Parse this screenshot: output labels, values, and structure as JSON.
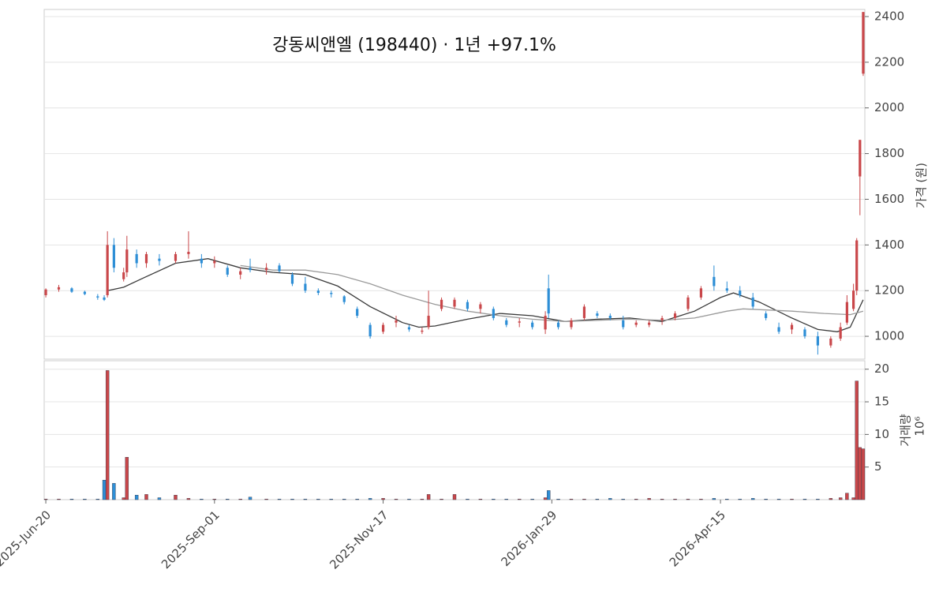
{
  "chart_data": [
    {
      "type": "candlestick",
      "title": "강동씨앤엘 (198440)  ·  1년 +97.1%",
      "ylabel": "가격 (원)",
      "up_color": "#c9474a",
      "down_color": "#2d8ed6",
      "x": [
        0,
        4,
        8,
        12,
        16,
        18,
        19,
        21,
        24,
        25,
        28,
        31,
        35,
        40,
        44,
        48,
        52,
        56,
        60,
        63,
        68,
        72,
        76,
        80,
        84,
        88,
        92,
        96,
        100,
        104,
        108,
        112,
        116,
        118,
        122,
        126,
        130,
        134,
        138,
        142,
        146,
        150,
        154,
        155,
        158,
        162,
        166,
        170,
        174,
        178,
        182,
        186,
        190,
        194,
        198,
        202,
        206,
        210,
        214,
        218,
        222,
        226,
        230,
        234,
        238,
        242,
        245,
        247,
        249,
        250,
        251,
        252
      ],
      "open": [
        1180,
        1205,
        1210,
        1195,
        1175,
        1170,
        1180,
        1400,
        1250,
        1280,
        1360,
        1320,
        1340,
        1330,
        1360,
        1340,
        1320,
        1300,
        1270,
        1300,
        1290,
        1310,
        1270,
        1230,
        1200,
        1190,
        1175,
        1120,
        1050,
        1020,
        1060,
        1040,
        1020,
        1040,
        1120,
        1130,
        1150,
        1120,
        1120,
        1070,
        1060,
        1060,
        1030,
        1210,
        1060,
        1040,
        1080,
        1100,
        1090,
        1070,
        1050,
        1050,
        1070,
        1080,
        1120,
        1170,
        1260,
        1210,
        1200,
        1170,
        1100,
        1040,
        1030,
        1030,
        1000,
        960,
        990,
        1060,
        1120,
        1200,
        1700,
        2150
      ],
      "high": [
        1210,
        1225,
        1215,
        1200,
        1185,
        1180,
        1460,
        1430,
        1300,
        1440,
        1380,
        1370,
        1360,
        1370,
        1460,
        1360,
        1350,
        1310,
        1300,
        1340,
        1320,
        1320,
        1280,
        1260,
        1210,
        1200,
        1180,
        1130,
        1060,
        1060,
        1090,
        1050,
        1040,
        1200,
        1170,
        1170,
        1160,
        1150,
        1130,
        1080,
        1080,
        1070,
        1110,
        1270,
        1070,
        1080,
        1140,
        1110,
        1100,
        1090,
        1070,
        1070,
        1090,
        1110,
        1180,
        1220,
        1310,
        1240,
        1220,
        1190,
        1110,
        1060,
        1060,
        1040,
        1020,
        1000,
        1060,
        1180,
        1230,
        1430,
        1860,
        2420
      ],
      "low": [
        1170,
        1195,
        1190,
        1180,
        1160,
        1155,
        1170,
        1280,
        1240,
        1260,
        1300,
        1300,
        1310,
        1320,
        1340,
        1300,
        1300,
        1260,
        1250,
        1280,
        1270,
        1280,
        1220,
        1190,
        1180,
        1170,
        1140,
        1080,
        990,
        1010,
        1040,
        1020,
        1010,
        1030,
        1110,
        1120,
        1110,
        1100,
        1070,
        1040,
        1040,
        1030,
        1010,
        1080,
        1030,
        1030,
        1070,
        1080,
        1070,
        1030,
        1040,
        1040,
        1050,
        1070,
        1110,
        1160,
        1200,
        1190,
        1170,
        1120,
        1070,
        1010,
        1010,
        990,
        920,
        950,
        980,
        1050,
        1110,
        1180,
        1530,
        2140
      ],
      "close": [
        1205,
        1215,
        1195,
        1185,
        1170,
        1160,
        1400,
        1300,
        1280,
        1380,
        1320,
        1360,
        1330,
        1360,
        1370,
        1320,
        1330,
        1270,
        1285,
        1290,
        1300,
        1285,
        1230,
        1200,
        1190,
        1185,
        1150,
        1090,
        1000,
        1050,
        1070,
        1030,
        1025,
        1090,
        1160,
        1160,
        1120,
        1140,
        1080,
        1050,
        1065,
        1040,
        1090,
        1100,
        1040,
        1070,
        1130,
        1090,
        1080,
        1040,
        1060,
        1060,
        1080,
        1100,
        1170,
        1210,
        1220,
        1200,
        1180,
        1130,
        1080,
        1020,
        1050,
        1000,
        960,
        990,
        1040,
        1150,
        1200,
        1420,
        1860,
        2420
      ],
      "lines": [
        {
          "color": "#3a3a3a",
          "x": [
            19,
            24,
            30,
            40,
            50,
            60,
            70,
            80,
            90,
            100,
            110,
            115,
            120,
            130,
            140,
            150,
            160,
            170,
            180,
            190,
            200,
            208,
            212,
            220,
            230,
            238,
            244,
            248,
            252
          ],
          "values": [
            1200,
            1215,
            1255,
            1320,
            1340,
            1300,
            1280,
            1270,
            1220,
            1130,
            1060,
            1040,
            1045,
            1075,
            1100,
            1090,
            1065,
            1075,
            1080,
            1065,
            1110,
            1170,
            1190,
            1150,
            1080,
            1030,
            1020,
            1040,
            1160
          ]
        },
        {
          "color": "#9a9a9a",
          "x": [
            60,
            70,
            80,
            90,
            100,
            110,
            120,
            130,
            140,
            150,
            160,
            170,
            180,
            190,
            200,
            210,
            215,
            230,
            240,
            248,
            252
          ],
          "values": [
            1310,
            1290,
            1290,
            1270,
            1230,
            1180,
            1140,
            1110,
            1090,
            1075,
            1065,
            1070,
            1075,
            1070,
            1080,
            1110,
            1120,
            1110,
            1100,
            1095,
            1110
          ]
        }
      ],
      "xlim": [
        -0.5,
        252.5
      ],
      "ylim": [
        900,
        2431
      ],
      "yticks": [
        1000,
        1200,
        1400,
        1600,
        1800,
        2000,
        2200,
        2400
      ],
      "grid": true
    },
    {
      "type": "bar",
      "ylabel": "거래량",
      "scale_label": "10⁶",
      "x": [
        0,
        4,
        8,
        12,
        16,
        18,
        19,
        21,
        24,
        25,
        28,
        31,
        35,
        40,
        44,
        48,
        52,
        56,
        60,
        63,
        68,
        72,
        76,
        80,
        84,
        88,
        92,
        96,
        100,
        104,
        108,
        112,
        116,
        118,
        122,
        126,
        130,
        134,
        138,
        142,
        146,
        150,
        154,
        155,
        158,
        162,
        166,
        170,
        174,
        178,
        182,
        186,
        190,
        194,
        198,
        202,
        206,
        210,
        214,
        218,
        222,
        226,
        230,
        234,
        238,
        242,
        245,
        247,
        249,
        250,
        251,
        252
      ],
      "values": [
        0.1,
        0.1,
        0.1,
        0.1,
        0.1,
        3.0,
        19.8,
        2.5,
        0.3,
        6.5,
        0.7,
        0.8,
        0.3,
        0.7,
        0.2,
        0.1,
        0.1,
        0.1,
        0.1,
        0.4,
        0.1,
        0.1,
        0.1,
        0.1,
        0.1,
        0.1,
        0.1,
        0.1,
        0.2,
        0.2,
        0.1,
        0.1,
        0.1,
        0.8,
        0.1,
        0.8,
        0.1,
        0.1,
        0.1,
        0.1,
        0.1,
        0.1,
        0.3,
        1.4,
        0.1,
        0.1,
        0.1,
        0.1,
        0.2,
        0.1,
        0.1,
        0.2,
        0.1,
        0.1,
        0.1,
        0.1,
        0.2,
        0.1,
        0.1,
        0.2,
        0.1,
        0.1,
        0.1,
        0.1,
        0.1,
        0.2,
        0.3,
        1.0,
        0.3,
        18.2,
        8.0,
        7.8
      ],
      "xlim": [
        -0.5,
        252.5
      ],
      "ylim": [
        0,
        21.3
      ],
      "yticks": [
        5,
        10,
        15,
        20
      ],
      "xticks": [
        {
          "value": 0,
          "label": "2025-Jun-20"
        },
        {
          "value": 52,
          "label": "2025-Sep-01"
        },
        {
          "value": 104,
          "label": "2025-Nov-17"
        },
        {
          "value": 156,
          "label": "2026-Jan-29"
        },
        {
          "value": 208,
          "label": "2026-Apr-15"
        }
      ],
      "grid": true
    }
  ]
}
